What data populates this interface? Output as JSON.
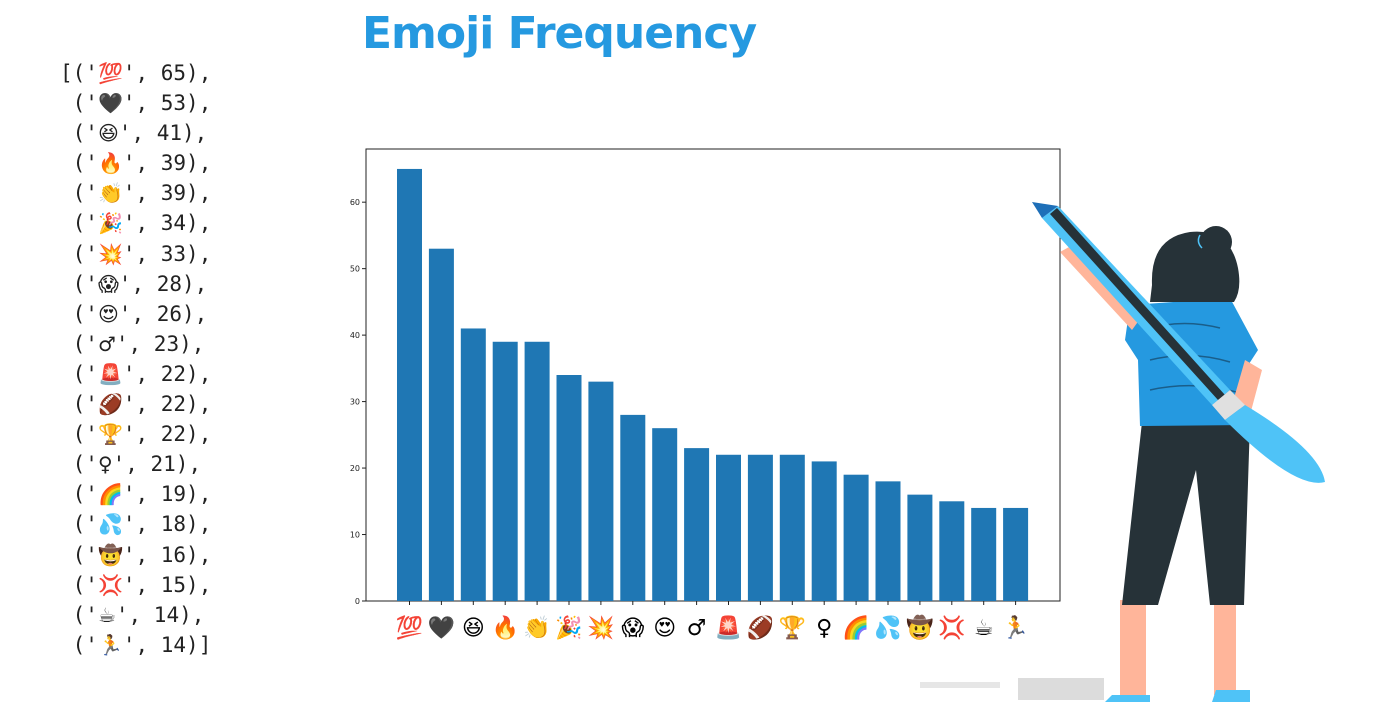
{
  "title": "Emoji Frequency",
  "list_rows": [
    {
      "prefix": "[('",
      "emoji": "💯",
      "suffix": "', 65),"
    },
    {
      "prefix": " ('",
      "emoji": "🖤",
      "suffix": "', 53),"
    },
    {
      "prefix": " ('",
      "emoji": "😆",
      "suffix": "', 41),"
    },
    {
      "prefix": " ('",
      "emoji": "🔥",
      "suffix": "', 39),"
    },
    {
      "prefix": " ('",
      "emoji": "👏",
      "suffix": "', 39),"
    },
    {
      "prefix": " ('",
      "emoji": "🎉",
      "suffix": "', 34),"
    },
    {
      "prefix": " ('",
      "emoji": "💥",
      "suffix": "', 33),"
    },
    {
      "prefix": " ('",
      "emoji": "😱",
      "suffix": "', 28),"
    },
    {
      "prefix": " ('",
      "emoji": "😍",
      "suffix": "', 26),"
    },
    {
      "prefix": " ('",
      "emoji": "♂",
      "suffix": "', 23),"
    },
    {
      "prefix": " ('",
      "emoji": "🚨",
      "suffix": "', 22),"
    },
    {
      "prefix": " ('",
      "emoji": "🏈",
      "suffix": "', 22),"
    },
    {
      "prefix": " ('",
      "emoji": "🏆",
      "suffix": "', 22),"
    },
    {
      "prefix": " ('",
      "emoji": "♀",
      "suffix": "', 21),"
    },
    {
      "prefix": " ('",
      "emoji": "🌈",
      "suffix": "', 19),"
    },
    {
      "prefix": " ('",
      "emoji": "💦",
      "suffix": "', 18),"
    },
    {
      "prefix": " ('",
      "emoji": "🤠",
      "suffix": "', 16),"
    },
    {
      "prefix": " ('",
      "emoji": "💢",
      "suffix": "', 15),"
    },
    {
      "prefix": " ('",
      "emoji": "☕",
      "suffix": "', 14),"
    },
    {
      "prefix": " ('",
      "emoji": "🏃",
      "suffix": "', 14)]"
    }
  ],
  "chart_data": {
    "type": "bar",
    "categories": [
      "💯",
      "🖤",
      "😆",
      "🔥",
      "👏",
      "🎉",
      "💥",
      "😱",
      "😍",
      "♂",
      "🚨",
      "🏈",
      "🏆",
      "♀",
      "🌈",
      "💦",
      "🤠",
      "💢",
      "☕",
      "🏃"
    ],
    "values": [
      65,
      53,
      41,
      39,
      39,
      34,
      33,
      28,
      26,
      23,
      22,
      22,
      22,
      21,
      19,
      18,
      16,
      15,
      14,
      14
    ],
    "ylim": [
      0,
      68
    ],
    "yticks": [
      0,
      10,
      20,
      30,
      40,
      50,
      60
    ],
    "xlabel": "",
    "ylabel": "",
    "grid": false,
    "bar_color": "#1f77b4",
    "axes_color": "#222222"
  },
  "colors": {
    "title": "#2599e0",
    "shirt": "#2599e0",
    "hair": "#263238",
    "skin": "#ffb59a",
    "pencil": "#4fc3f7"
  }
}
